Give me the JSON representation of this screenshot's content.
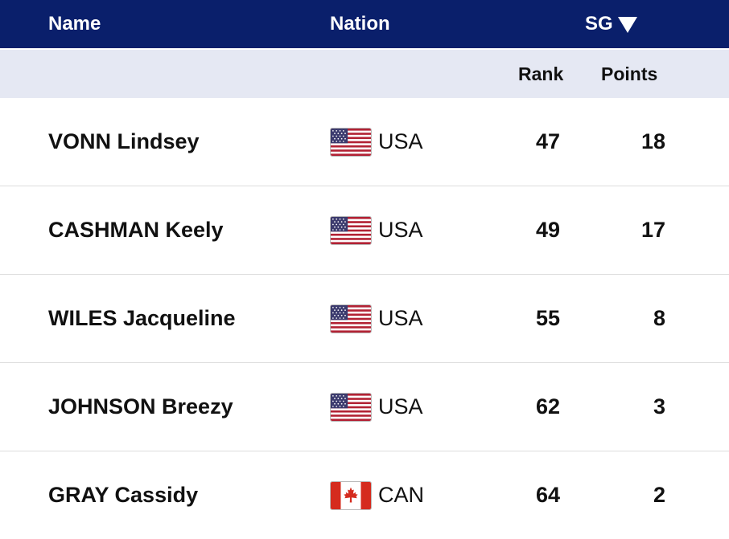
{
  "header": {
    "name_label": "Name",
    "nation_label": "Nation",
    "sg_label": "SG",
    "sort_icon": "triangle-down-icon"
  },
  "subheader": {
    "rank_label": "Rank",
    "points_label": "Points"
  },
  "colors": {
    "header_bg": "#0a1f6b",
    "subheader_bg": "#e5e8f3"
  },
  "rows": [
    {
      "name": "VONN Lindsey",
      "nation": "USA",
      "flag": "usa-flag-icon",
      "rank": "47",
      "points": "18"
    },
    {
      "name": "CASHMAN Keely",
      "nation": "USA",
      "flag": "usa-flag-icon",
      "rank": "49",
      "points": "17"
    },
    {
      "name": "WILES Jacqueline",
      "nation": "USA",
      "flag": "usa-flag-icon",
      "rank": "55",
      "points": "8"
    },
    {
      "name": "JOHNSON Breezy",
      "nation": "USA",
      "flag": "usa-flag-icon",
      "rank": "62",
      "points": "3"
    },
    {
      "name": "GRAY Cassidy",
      "nation": "CAN",
      "flag": "canada-flag-icon",
      "rank": "64",
      "points": "2"
    }
  ]
}
